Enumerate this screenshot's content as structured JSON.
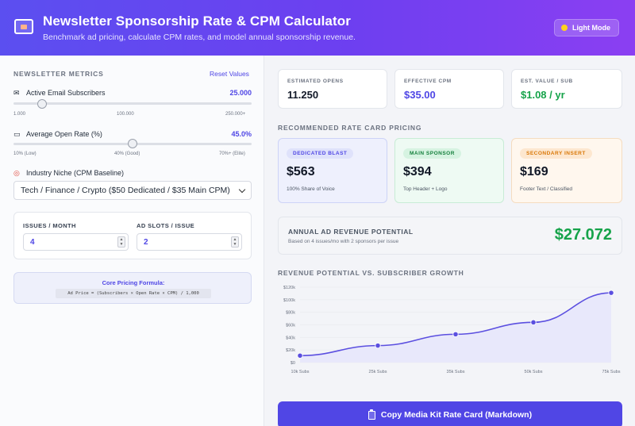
{
  "header": {
    "title": "Newsletter Sponsorship Rate & CPM Calculator",
    "subtitle": "Benchmark ad pricing, calculate CPM rates, and model annual sponsorship revenue.",
    "mode_label": "Light Mode"
  },
  "metrics": {
    "section_title": "NEWSLETTER METRICS",
    "reset_label": "Reset Values",
    "subscribers": {
      "label": "Active Email Subscribers",
      "value": "25.000",
      "slider_fraction": 0.12,
      "ticks": [
        "1.000",
        "100.000",
        "250.000+"
      ]
    },
    "open_rate": {
      "label": "Average Open Rate (%)",
      "value": "45.0%",
      "slider_fraction": 0.5,
      "ticks": [
        "10% (Low)",
        "40% (Good)",
        "70%+ (Elite)"
      ]
    },
    "niche": {
      "label": "Industry Niche (CPM Baseline)",
      "selected": "Tech / Finance / Crypto ($50 Dedicated / $35 Main CPM)"
    },
    "issues_per_month": {
      "label": "ISSUES / MONTH",
      "value": "4"
    },
    "ad_slots": {
      "label": "AD SLOTS / ISSUE",
      "value": "2"
    },
    "formula": {
      "title": "Core Pricing Formula:",
      "code": "Ad Price = (Subscribers × Open Rate × CPM) / 1,000"
    }
  },
  "stats": [
    {
      "label": "ESTIMATED OPENS",
      "value": "11.250",
      "color": "#111827"
    },
    {
      "label": "EFFECTIVE CPM",
      "value": "$35.00",
      "color": "#4f46e5"
    },
    {
      "label": "EST. VALUE / SUB",
      "value": "$1.08 / yr",
      "color": "#16a34a"
    }
  ],
  "rate_card": {
    "section_title": "RECOMMENDED RATE CARD PRICING",
    "items": [
      {
        "tag": "DEDICATED BLAST",
        "price": "$563",
        "desc": "100% Share of Voice",
        "bg": "#eef0fd",
        "border": "#cdd3f7",
        "pill_bg": "#dfe2fb",
        "pill_color": "#4f46e5"
      },
      {
        "tag": "MAIN SPONSOR",
        "price": "$394",
        "desc": "Top Header + Logo",
        "bg": "#eefaf3",
        "border": "#c8ecd6",
        "pill_bg": "#d6f3e1",
        "pill_color": "#15803d"
      },
      {
        "tag": "SECONDARY INSERT",
        "price": "$169",
        "desc": "Footer Text / Classified",
        "bg": "#fff7ee",
        "border": "#f5dcc0",
        "pill_bg": "#fde7cf",
        "pill_color": "#d97706"
      }
    ]
  },
  "revenue": {
    "label": "ANNUAL AD REVENUE POTENTIAL",
    "sub": "Based on 4 issues/mo with 2 sponsors per issue",
    "value": "$27.072"
  },
  "chart_data": {
    "type": "area",
    "title": "REVENUE POTENTIAL VS. SUBSCRIBER GROWTH",
    "categories": [
      "10k Subs",
      "25k Subs",
      "35k Subs",
      "50k Subs",
      "75k Subs"
    ],
    "values": [
      11000,
      27000,
      45000,
      64000,
      111000
    ],
    "y_ticks": [
      "$0",
      "$20k",
      "$40k",
      "$60k",
      "$80k",
      "$100k",
      "$120k"
    ],
    "ylim": [
      0,
      120000
    ],
    "line_color": "#5b4fe0",
    "fill_color": "#e8e8fb"
  },
  "copy_button": {
    "label": "Copy Media Kit Rate Card (Markdown)"
  }
}
